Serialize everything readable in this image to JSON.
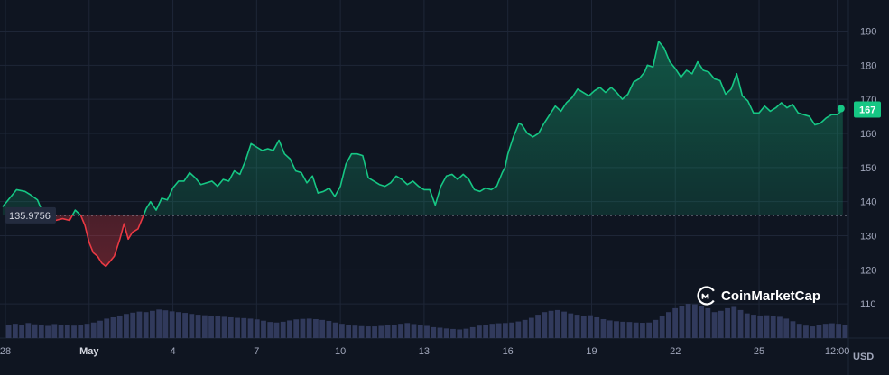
{
  "chart_data": {
    "type": "area",
    "currency_label": "USD",
    "watermark": "CoinMarketCap",
    "ylim": [
      100,
      197
    ],
    "y_ticks": [
      110,
      120,
      130,
      140,
      150,
      160,
      170,
      180,
      190
    ],
    "x_ticks": [
      {
        "x": 0,
        "label": "28"
      },
      {
        "x": 3,
        "label": "May"
      },
      {
        "x": 6,
        "label": "4"
      },
      {
        "x": 9,
        "label": "7"
      },
      {
        "x": 12,
        "label": "10"
      },
      {
        "x": 15,
        "label": "13"
      },
      {
        "x": 18,
        "label": "16"
      },
      {
        "x": 21,
        "label": "19"
      },
      {
        "x": 24,
        "label": "22"
      },
      {
        "x": 27,
        "label": "25"
      },
      {
        "x": 29.8,
        "label": "12:00"
      }
    ],
    "baseline": {
      "value": 135.9756,
      "label": "135.9756"
    },
    "current": {
      "value": 167,
      "label": "167"
    },
    "colors": {
      "up": "#16c784",
      "down": "#ea3943",
      "background": "#0f1521",
      "grid": "#1e2637",
      "volume": "#313a5c"
    },
    "x_max": 30.2,
    "price": [
      [
        -0.1,
        138.5
      ],
      [
        0.2,
        141.5
      ],
      [
        0.4,
        143.5
      ],
      [
        0.7,
        143
      ],
      [
        0.9,
        142
      ],
      [
        1.15,
        140.5
      ],
      [
        1.3,
        137.5
      ],
      [
        1.45,
        135
      ],
      [
        1.6,
        136
      ],
      [
        1.8,
        134.5
      ],
      [
        2.05,
        135
      ],
      [
        2.3,
        134.5
      ],
      [
        2.5,
        137.5
      ],
      [
        2.7,
        136
      ],
      [
        2.85,
        133
      ],
      [
        3.0,
        128
      ],
      [
        3.15,
        125
      ],
      [
        3.3,
        124
      ],
      [
        3.45,
        122
      ],
      [
        3.6,
        121
      ],
      [
        3.75,
        122.5
      ],
      [
        3.9,
        124
      ],
      [
        4.1,
        129
      ],
      [
        4.25,
        133.5
      ],
      [
        4.4,
        129
      ],
      [
        4.55,
        131
      ],
      [
        4.75,
        132
      ],
      [
        4.9,
        135
      ],
      [
        5.05,
        138
      ],
      [
        5.2,
        140
      ],
      [
        5.4,
        137.5
      ],
      [
        5.6,
        141
      ],
      [
        5.8,
        140.5
      ],
      [
        6.0,
        144
      ],
      [
        6.2,
        146
      ],
      [
        6.4,
        146
      ],
      [
        6.6,
        148.5
      ],
      [
        6.8,
        147
      ],
      [
        7.0,
        145
      ],
      [
        7.2,
        145.5
      ],
      [
        7.4,
        146
      ],
      [
        7.6,
        144.5
      ],
      [
        7.8,
        146.5
      ],
      [
        8.0,
        146
      ],
      [
        8.2,
        149
      ],
      [
        8.4,
        148
      ],
      [
        8.6,
        152
      ],
      [
        8.8,
        157
      ],
      [
        9.0,
        156
      ],
      [
        9.2,
        155
      ],
      [
        9.4,
        155.5
      ],
      [
        9.6,
        155
      ],
      [
        9.8,
        158
      ],
      [
        10.0,
        154
      ],
      [
        10.2,
        152.5
      ],
      [
        10.4,
        149
      ],
      [
        10.6,
        148.5
      ],
      [
        10.8,
        145.5
      ],
      [
        11.0,
        147.5
      ],
      [
        11.2,
        142.5
      ],
      [
        11.4,
        143
      ],
      [
        11.6,
        144
      ],
      [
        11.8,
        141.5
      ],
      [
        12.0,
        144.5
      ],
      [
        12.2,
        151
      ],
      [
        12.4,
        154
      ],
      [
        12.6,
        154
      ],
      [
        12.8,
        153.5
      ],
      [
        13.0,
        147
      ],
      [
        13.2,
        146
      ],
      [
        13.4,
        145
      ],
      [
        13.6,
        144.5
      ],
      [
        13.8,
        145.5
      ],
      [
        14.0,
        147.5
      ],
      [
        14.2,
        146.5
      ],
      [
        14.4,
        145
      ],
      [
        14.6,
        146
      ],
      [
        14.8,
        144.5
      ],
      [
        15.0,
        143.5
      ],
      [
        15.2,
        143.5
      ],
      [
        15.4,
        139
      ],
      [
        15.6,
        144.5
      ],
      [
        15.8,
        147.5
      ],
      [
        16.0,
        148
      ],
      [
        16.2,
        146.5
      ],
      [
        16.4,
        148
      ],
      [
        16.6,
        146.5
      ],
      [
        16.8,
        143.5
      ],
      [
        17.0,
        143
      ],
      [
        17.2,
        144
      ],
      [
        17.4,
        143.5
      ],
      [
        17.6,
        144.5
      ],
      [
        17.8,
        148.5
      ],
      [
        17.9,
        150
      ],
      [
        18.0,
        154
      ],
      [
        18.2,
        159
      ],
      [
        18.4,
        163
      ],
      [
        18.5,
        162.5
      ],
      [
        18.7,
        160
      ],
      [
        18.9,
        159
      ],
      [
        19.1,
        160
      ],
      [
        19.3,
        163
      ],
      [
        19.5,
        165.5
      ],
      [
        19.7,
        168
      ],
      [
        19.9,
        166.5
      ],
      [
        20.1,
        169
      ],
      [
        20.3,
        170.5
      ],
      [
        20.5,
        173
      ],
      [
        20.7,
        172
      ],
      [
        20.9,
        171
      ],
      [
        21.1,
        172.5
      ],
      [
        21.3,
        173.5
      ],
      [
        21.5,
        172
      ],
      [
        21.7,
        173.5
      ],
      [
        21.9,
        172
      ],
      [
        22.1,
        170
      ],
      [
        22.3,
        171.5
      ],
      [
        22.5,
        175
      ],
      [
        22.7,
        176
      ],
      [
        22.9,
        178
      ],
      [
        23.0,
        180
      ],
      [
        23.2,
        179.5
      ],
      [
        23.4,
        187
      ],
      [
        23.6,
        185
      ],
      [
        23.8,
        181
      ],
      [
        24.0,
        179
      ],
      [
        24.2,
        176.5
      ],
      [
        24.4,
        178.5
      ],
      [
        24.6,
        177.5
      ],
      [
        24.8,
        181
      ],
      [
        25.0,
        178.5
      ],
      [
        25.2,
        178
      ],
      [
        25.4,
        176
      ],
      [
        25.6,
        175.5
      ],
      [
        25.8,
        171.5
      ],
      [
        26.0,
        173
      ],
      [
        26.2,
        177.5
      ],
      [
        26.4,
        171
      ],
      [
        26.6,
        169.5
      ],
      [
        26.8,
        166
      ],
      [
        27.0,
        166
      ],
      [
        27.2,
        168
      ],
      [
        27.4,
        166.5
      ],
      [
        27.6,
        167.5
      ],
      [
        27.8,
        169
      ],
      [
        28.0,
        167.5
      ],
      [
        28.2,
        168.5
      ],
      [
        28.4,
        166
      ],
      [
        28.6,
        165.5
      ],
      [
        28.8,
        165
      ],
      [
        29.0,
        162.5
      ],
      [
        29.2,
        163
      ],
      [
        29.4,
        164.5
      ],
      [
        29.6,
        165.5
      ],
      [
        29.8,
        165.5
      ],
      [
        30.0,
        167
      ]
    ],
    "volume_relative": [
      0.52,
      0.55,
      0.5,
      0.58,
      0.53,
      0.49,
      0.47,
      0.54,
      0.5,
      0.52,
      0.48,
      0.51,
      0.55,
      0.6,
      0.67,
      0.75,
      0.8,
      0.87,
      0.93,
      0.98,
      1.02,
      1.0,
      1.05,
      1.1,
      1.07,
      1.03,
      1.0,
      0.97,
      0.93,
      0.9,
      0.88,
      0.85,
      0.84,
      0.82,
      0.8,
      0.78,
      0.77,
      0.75,
      0.72,
      0.67,
      0.62,
      0.6,
      0.63,
      0.68,
      0.72,
      0.74,
      0.75,
      0.73,
      0.7,
      0.66,
      0.6,
      0.55,
      0.5,
      0.48,
      0.46,
      0.45,
      0.45,
      0.47,
      0.5,
      0.52,
      0.55,
      0.58,
      0.54,
      0.5,
      0.47,
      0.42,
      0.4,
      0.37,
      0.35,
      0.33,
      0.36,
      0.42,
      0.48,
      0.52,
      0.55,
      0.57,
      0.58,
      0.6,
      0.64,
      0.7,
      0.78,
      0.9,
      1.0,
      1.05,
      1.08,
      1.02,
      0.95,
      0.9,
      0.85,
      0.88,
      0.8,
      0.73,
      0.68,
      0.65,
      0.63,
      0.62,
      0.6,
      0.59,
      0.6,
      0.7,
      0.85,
      1.0,
      1.15,
      1.25,
      1.32,
      1.3,
      1.25,
      1.15,
      1.0,
      1.05,
      1.15,
      1.2,
      1.08,
      0.95,
      0.9,
      0.87,
      0.88,
      0.85,
      0.82,
      0.75,
      0.65,
      0.55,
      0.48,
      0.45,
      0.5,
      0.55,
      0.57,
      0.55,
      0.52
    ]
  }
}
